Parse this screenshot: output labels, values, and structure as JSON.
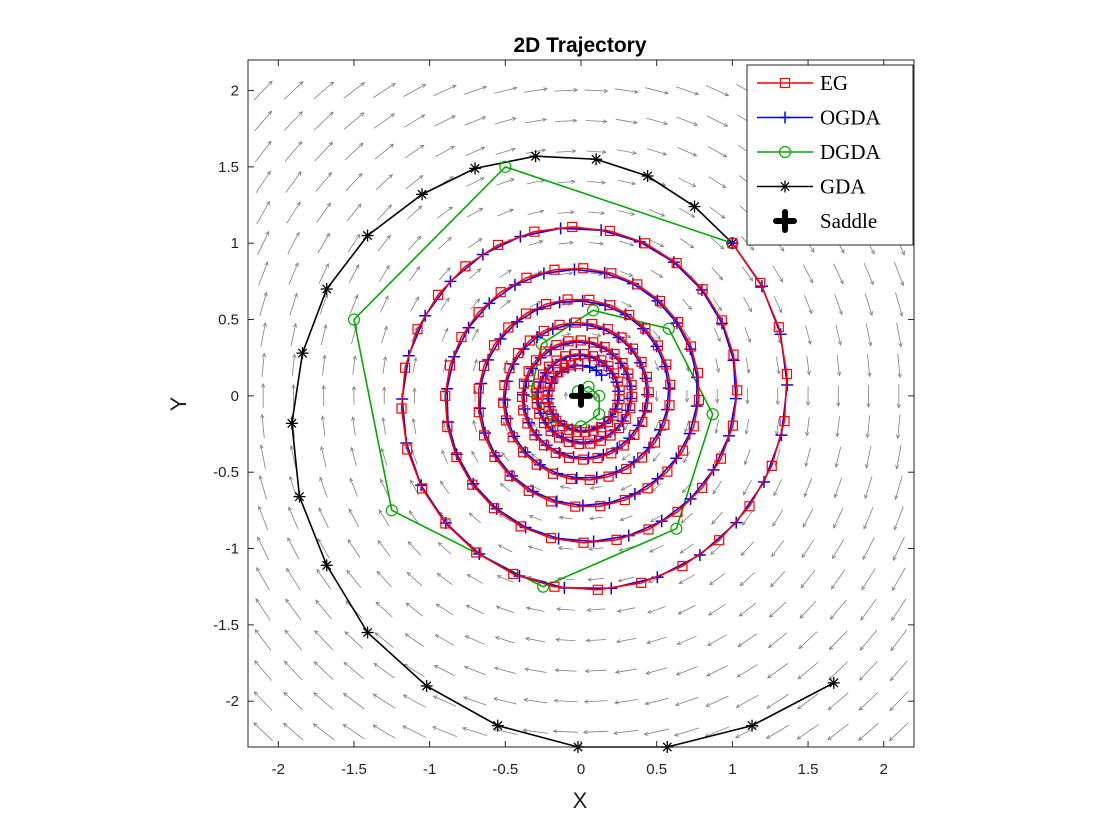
{
  "chart_data": {
    "type": "line",
    "title": "2D Trajectory",
    "xlabel": "X",
    "ylabel": "Y",
    "xlim": [
      -2.2,
      2.2
    ],
    "ylim": [
      -2.3,
      2.2
    ],
    "xticks": [
      -2,
      -1.5,
      -1,
      -0.5,
      0,
      0.5,
      1,
      1.5,
      2
    ],
    "xtick_labels": [
      "-2",
      "-1.5",
      "-1",
      "-0.5",
      "0",
      "0.5",
      "1",
      "1.5",
      "2"
    ],
    "yticks": [
      -2,
      -1.5,
      -1,
      -0.5,
      0,
      0.5,
      1,
      1.5,
      2
    ],
    "ytick_labels": [
      "-2",
      "-1.5",
      "-1",
      "-0.5",
      "0",
      "0.5",
      "1",
      "1.5",
      "2"
    ],
    "legend_position": "top-right",
    "vector_field": {
      "color": "#808080",
      "x_range": [
        -2.1,
        2.1
      ],
      "y_range": [
        -2.2,
        2.1
      ],
      "step_x": 0.2,
      "step_y": 0.2,
      "field": "rotation (y, -x)"
    },
    "series": [
      {
        "name": "EG",
        "color": "#ff0000",
        "marker": "square",
        "start": [
          1,
          1
        ],
        "spiral_start_radius": 1.41,
        "spiral_start_angle_deg": 45,
        "spiral_radius_decay": 0.99,
        "spiral_angle_step_deg": -13,
        "spiral_points": 190
      },
      {
        "name": "OGDA",
        "color": "#0000ff",
        "marker": "plus",
        "start": [
          1,
          1
        ],
        "spiral_start_radius": 1.41,
        "spiral_start_angle_deg": 45,
        "spiral_radius_decay": 0.989,
        "spiral_angle_step_deg": -14,
        "spiral_points": 180
      },
      {
        "name": "DGDA",
        "color": "#00aa00",
        "marker": "circle",
        "x": [
          1,
          -0.5,
          -1.5,
          -1.25,
          -0.25,
          0.63,
          0.87,
          0.58,
          0.08,
          -0.26,
          -0.33,
          -0.2,
          0,
          0.12,
          0.12,
          0.05,
          -0.02
        ],
        "y": [
          1,
          1.5,
          0.5,
          -0.75,
          -1.25,
          -0.87,
          -0.12,
          0.44,
          0.56,
          0.34,
          0.03,
          -0.17,
          -0.2,
          -0.12,
          0,
          0.06,
          0.03
        ]
      },
      {
        "name": "GDA",
        "color": "#000000",
        "marker": "asterisk",
        "x": [
          1.67,
          1.13,
          0.57,
          -0.02,
          -0.55,
          -1.02,
          -1.41,
          -1.68,
          -1.86,
          -1.91,
          -1.84,
          -1.68,
          -1.41,
          -1.05,
          -0.7,
          -0.3,
          0.1,
          0.44,
          0.75,
          1
        ],
        "y": [
          -1.88,
          -2.16,
          -2.3,
          -2.3,
          -2.16,
          -1.9,
          -1.55,
          -1.11,
          -0.66,
          -0.18,
          0.28,
          0.7,
          1.05,
          1.32,
          1.49,
          1.57,
          1.55,
          1.44,
          1.24,
          1
        ]
      },
      {
        "name": "Saddle",
        "color": "#000000",
        "marker": "plus-bold",
        "x": [
          0
        ],
        "y": [
          0
        ]
      }
    ]
  }
}
